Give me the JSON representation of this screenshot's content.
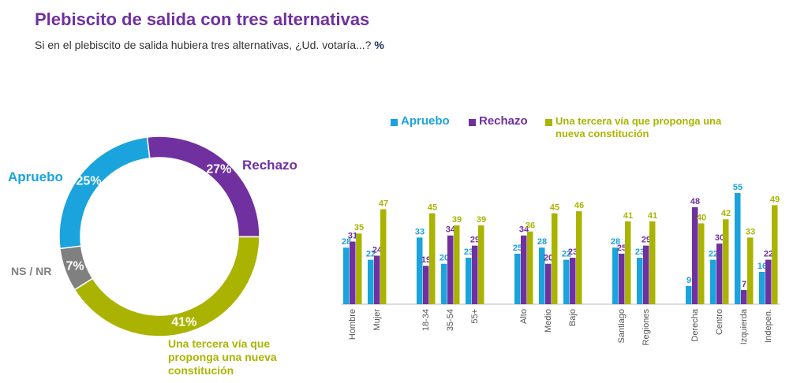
{
  "title": "Plebiscito de salida con tres alternativas",
  "subtitle": "Si en el plebiscito de salida hubiera tres alternativas, ¿Ud. votaría...?",
  "unit": "%",
  "chart_data": [
    {
      "type": "donut",
      "categories": [
        "Apruebo",
        "Rechazo",
        "Una tercera vía que proponga una nueva constitución",
        "NS / NR"
      ],
      "values": [
        25,
        27,
        41,
        7
      ],
      "value_labels": [
        "25%",
        "27%",
        "41%",
        "7%"
      ],
      "colors": [
        "#1aa3dc",
        "#7030a0",
        "#aab400",
        "#808080"
      ]
    },
    {
      "type": "bar",
      "categories": [
        "Hombre",
        "Mujer",
        "18-34",
        "35-54",
        "55+",
        "Alto",
        "Medio",
        "Bajo",
        "Santiago",
        "Regiones",
        "Derecha",
        "Centro",
        "Izquierda",
        "Indepen."
      ],
      "series": [
        {
          "name": "Apruebo",
          "color": "#1aa3dc",
          "values": [
            28,
            22,
            33,
            20,
            23,
            25,
            28,
            22,
            28,
            23,
            9,
            22,
            55,
            16
          ]
        },
        {
          "name": "Rechazo",
          "color": "#7030a0",
          "values": [
            31,
            24,
            19,
            34,
            29,
            34,
            20,
            23,
            25,
            29,
            48,
            30,
            7,
            22
          ]
        },
        {
          "name": "Una tercera vía que proponga una nueva constitución",
          "color": "#aab400",
          "values": [
            35,
            47,
            45,
            39,
            39,
            36,
            45,
            46,
            41,
            41,
            40,
            42,
            33,
            49
          ]
        }
      ],
      "legend": "top"
    }
  ]
}
